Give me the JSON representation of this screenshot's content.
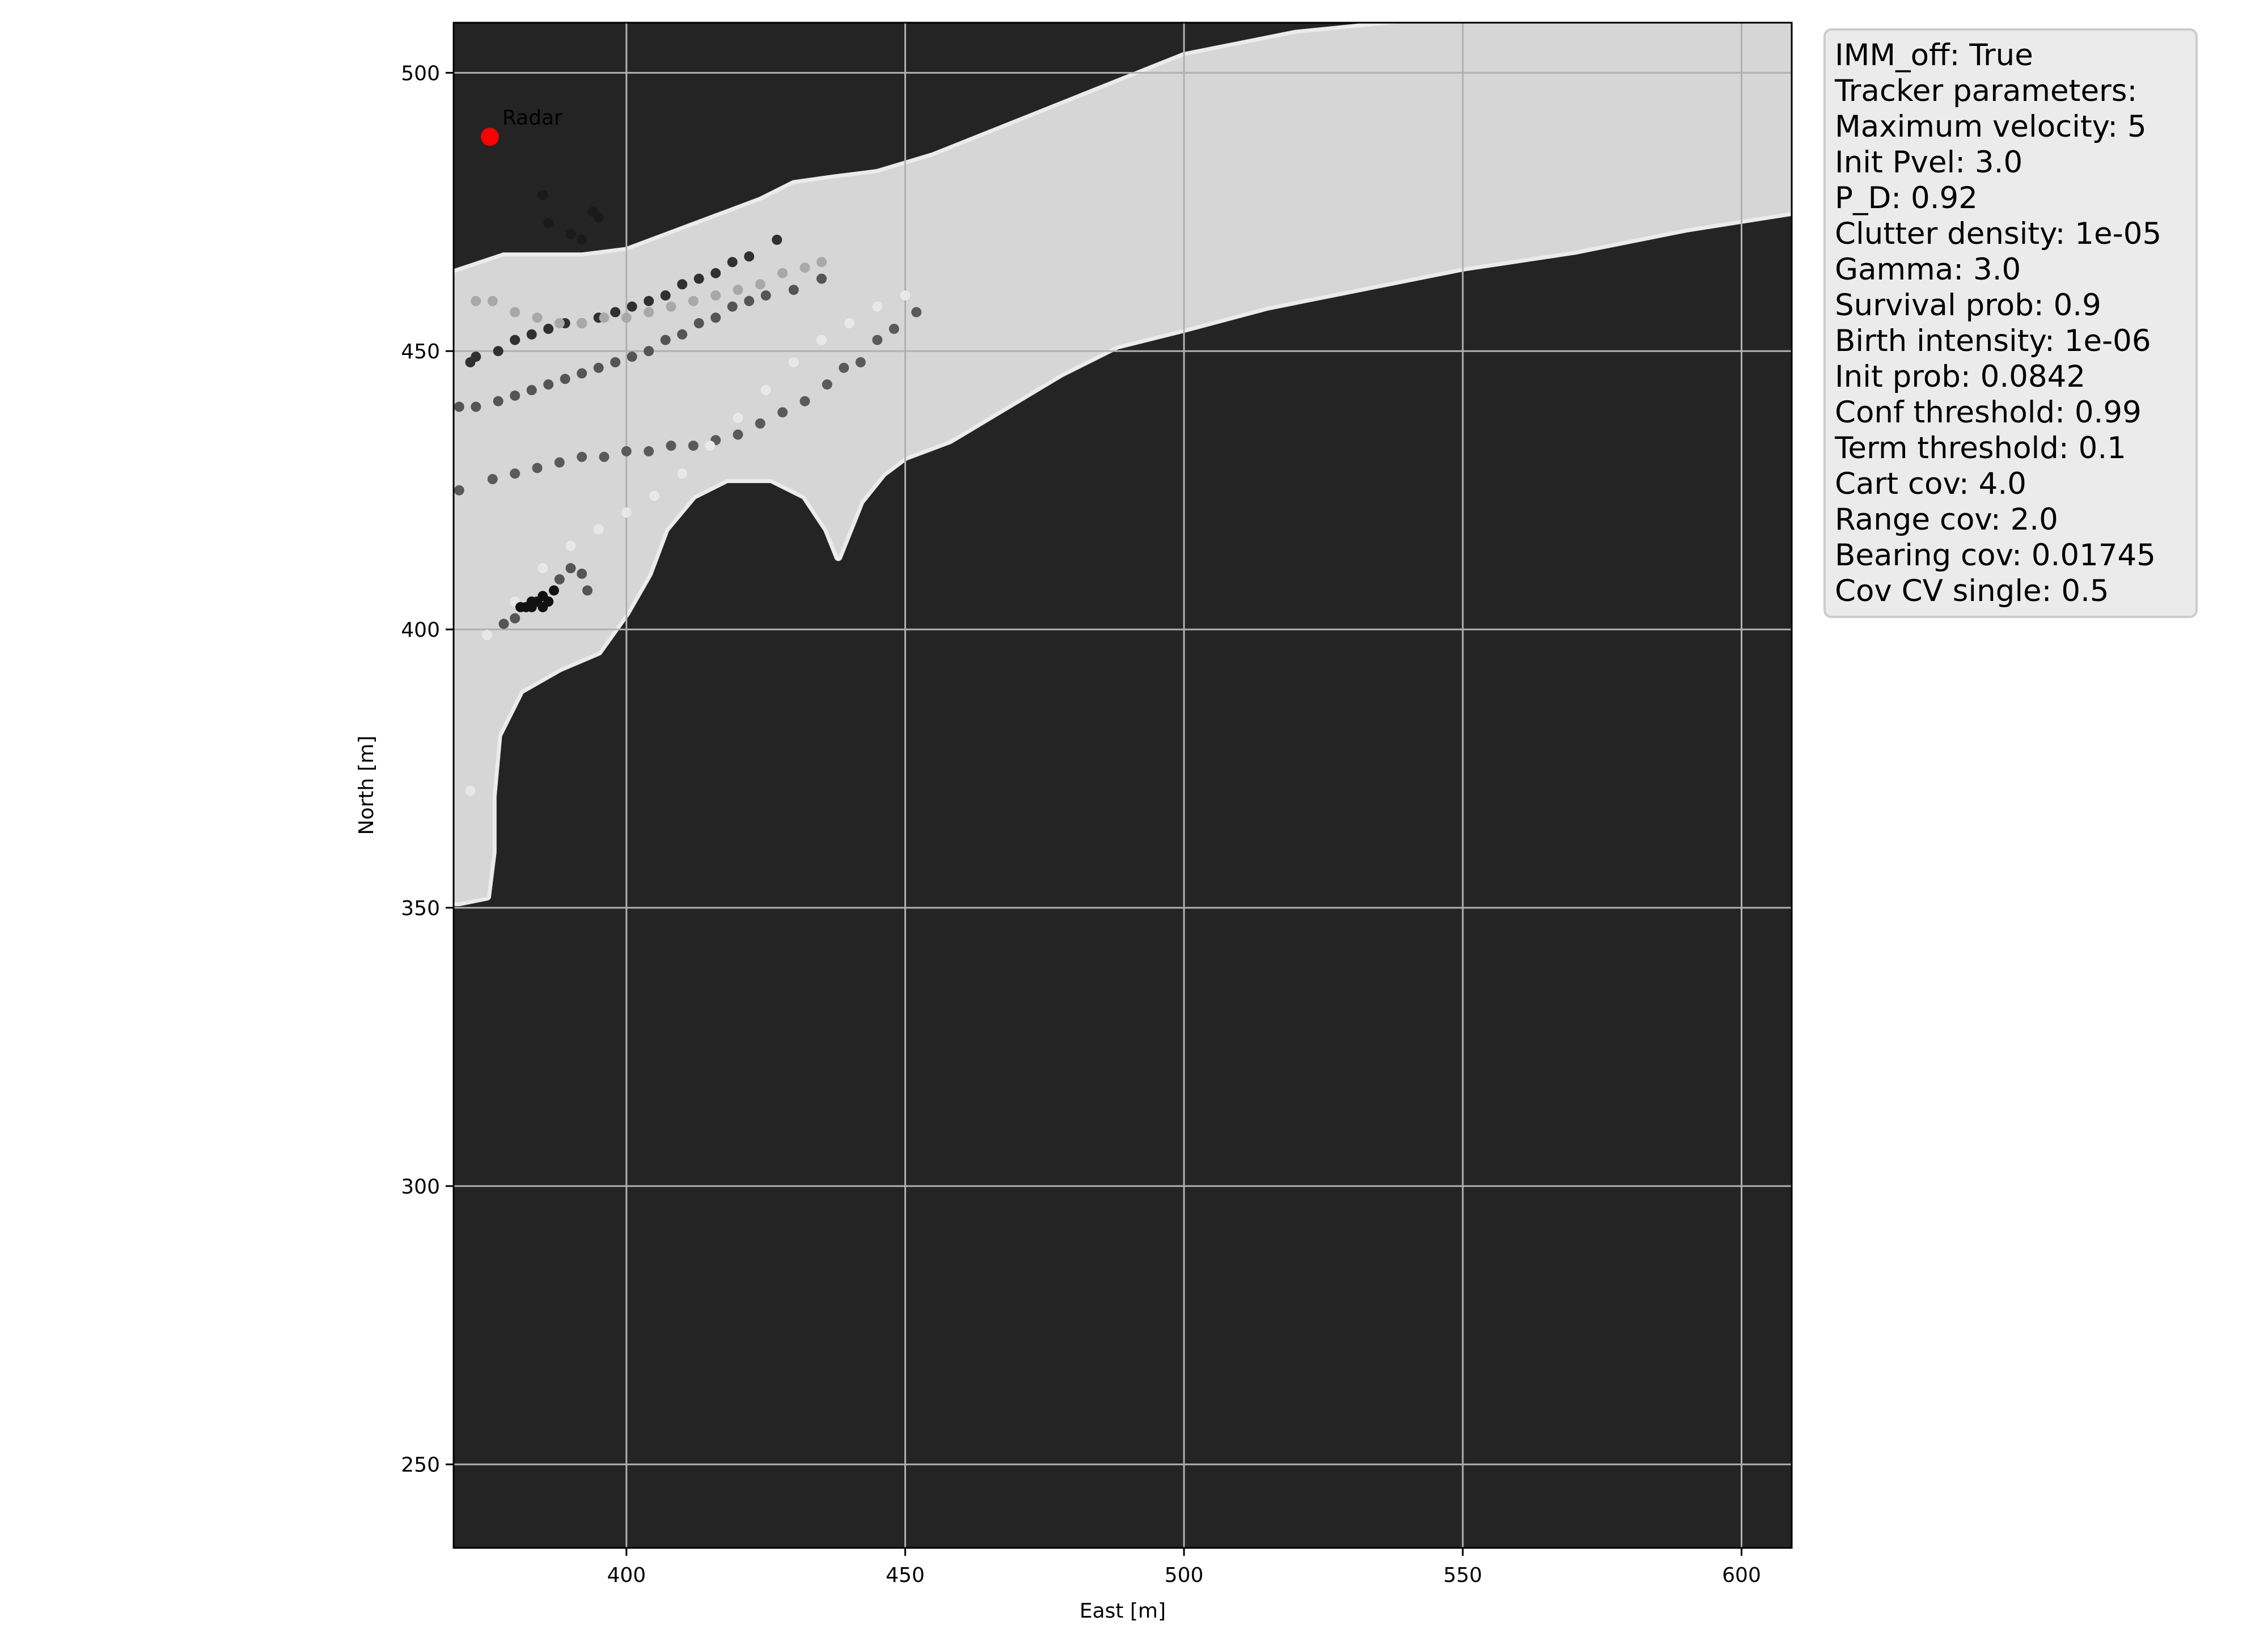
{
  "chart_data": {
    "type": "scatter",
    "title": "",
    "xlabel": "East [m]",
    "ylabel": "North [m]",
    "xlim": [
      369,
      609
    ],
    "ylim": [
      235,
      509
    ],
    "xticks": [
      400,
      450,
      500,
      550,
      600
    ],
    "yticks": [
      250,
      300,
      350,
      400,
      450,
      500
    ],
    "grid": true,
    "background": {
      "land_color": "#242424",
      "water_color": "#d6d6d6",
      "shore_color": "#ebebeb",
      "water_region": [
        [
          369,
          464
        ],
        [
          378,
          467
        ],
        [
          392,
          467
        ],
        [
          400,
          468
        ],
        [
          408,
          471
        ],
        [
          416,
          474
        ],
        [
          424,
          477
        ],
        [
          430,
          480
        ],
        [
          437,
          481
        ],
        [
          445,
          482
        ],
        [
          455,
          485
        ],
        [
          470,
          491
        ],
        [
          485,
          497
        ],
        [
          500,
          503
        ],
        [
          520,
          507
        ],
        [
          540,
          509
        ],
        [
          609,
          509
        ],
        [
          609,
          475
        ],
        [
          590,
          472
        ],
        [
          570,
          468
        ],
        [
          550,
          465
        ],
        [
          530,
          461
        ],
        [
          515,
          458
        ],
        [
          500,
          454
        ],
        [
          488,
          451
        ],
        [
          478,
          446
        ],
        [
          468,
          440
        ],
        [
          458,
          434
        ],
        [
          450,
          431
        ],
        [
          446,
          428
        ],
        [
          442,
          423
        ],
        [
          440,
          418
        ],
        [
          438,
          413
        ],
        [
          436,
          418
        ],
        [
          432,
          424
        ],
        [
          426,
          427
        ],
        [
          418,
          427
        ],
        [
          412,
          424
        ],
        [
          407,
          418
        ],
        [
          404,
          410
        ],
        [
          400,
          403
        ],
        [
          395,
          396
        ],
        [
          388,
          393
        ],
        [
          381,
          389
        ],
        [
          377,
          381
        ],
        [
          376,
          370
        ],
        [
          376,
          360
        ],
        [
          375,
          352
        ],
        [
          370,
          351
        ],
        [
          369,
          351
        ]
      ]
    },
    "radar": {
      "x": 375.5,
      "y": 488.5,
      "label": "Radar",
      "color": "#ff0000"
    },
    "series": [
      {
        "color": "#303030",
        "points": [
          [
            372,
            448
          ],
          [
            373,
            449
          ],
          [
            377,
            450
          ],
          [
            380,
            452
          ],
          [
            383,
            453
          ],
          [
            386,
            454
          ],
          [
            389,
            455
          ],
          [
            392,
            455
          ],
          [
            395,
            456
          ],
          [
            398,
            457
          ],
          [
            401,
            458
          ],
          [
            404,
            459
          ],
          [
            407,
            460
          ],
          [
            410,
            462
          ],
          [
            413,
            463
          ],
          [
            416,
            464
          ],
          [
            419,
            466
          ],
          [
            422,
            467
          ],
          [
            427,
            470
          ]
        ]
      },
      {
        "color": "#555555",
        "points": [
          [
            370,
            440
          ],
          [
            373,
            440
          ],
          [
            377,
            441
          ],
          [
            380,
            442
          ],
          [
            383,
            443
          ],
          [
            386,
            444
          ],
          [
            389,
            445
          ],
          [
            392,
            446
          ],
          [
            395,
            447
          ],
          [
            398,
            448
          ],
          [
            401,
            449
          ],
          [
            404,
            450
          ],
          [
            407,
            452
          ],
          [
            410,
            453
          ],
          [
            413,
            455
          ],
          [
            416,
            456
          ],
          [
            419,
            458
          ],
          [
            422,
            459
          ],
          [
            425,
            460
          ],
          [
            430,
            461
          ],
          [
            435,
            463
          ]
        ]
      },
      {
        "color": "#5a5a5a",
        "points": [
          [
            370,
            425
          ],
          [
            376,
            427
          ],
          [
            380,
            428
          ],
          [
            384,
            429
          ],
          [
            388,
            430
          ],
          [
            392,
            431
          ],
          [
            396,
            431
          ],
          [
            400,
            432
          ],
          [
            404,
            432
          ],
          [
            408,
            433
          ],
          [
            412,
            433
          ],
          [
            416,
            434
          ],
          [
            420,
            435
          ],
          [
            424,
            437
          ],
          [
            428,
            439
          ],
          [
            432,
            441
          ],
          [
            436,
            444
          ],
          [
            439,
            447
          ],
          [
            442,
            448
          ],
          [
            445,
            452
          ],
          [
            448,
            454
          ],
          [
            452,
            457
          ]
        ]
      },
      {
        "color": "#a8a8a8",
        "points": [
          [
            373,
            459
          ],
          [
            376,
            459
          ],
          [
            380,
            457
          ],
          [
            384,
            456
          ],
          [
            388,
            455
          ],
          [
            392,
            455
          ],
          [
            396,
            456
          ],
          [
            400,
            456
          ],
          [
            404,
            457
          ],
          [
            408,
            458
          ],
          [
            412,
            459
          ],
          [
            416,
            460
          ],
          [
            420,
            461
          ],
          [
            424,
            462
          ],
          [
            428,
            464
          ],
          [
            432,
            465
          ],
          [
            435,
            466
          ]
        ]
      },
      {
        "color": "#e8e8e8",
        "points": [
          [
            372,
            371
          ],
          [
            375,
            399
          ],
          [
            380,
            405
          ],
          [
            385,
            411
          ],
          [
            390,
            415
          ],
          [
            395,
            418
          ],
          [
            400,
            421
          ],
          [
            405,
            424
          ],
          [
            410,
            428
          ],
          [
            415,
            433
          ],
          [
            420,
            438
          ],
          [
            425,
            443
          ],
          [
            430,
            448
          ],
          [
            435,
            452
          ],
          [
            440,
            455
          ],
          [
            445,
            458
          ],
          [
            450,
            460
          ]
        ]
      },
      {
        "color": "#111111",
        "points": [
          [
            382,
            404
          ],
          [
            383,
            405
          ],
          [
            384,
            405
          ],
          [
            385,
            406
          ],
          [
            386,
            405
          ],
          [
            383,
            404
          ],
          [
            381,
            404
          ],
          [
            387,
            407
          ],
          [
            385,
            404
          ]
        ]
      },
      {
        "color": "#555555",
        "points": [
          [
            378,
            401
          ],
          [
            380,
            402
          ],
          [
            388,
            409
          ],
          [
            390,
            411
          ],
          [
            392,
            410
          ],
          [
            393,
            407
          ]
        ]
      },
      {
        "color": "#1a1a1a",
        "points": [
          [
            385,
            478
          ],
          [
            386,
            473
          ],
          [
            390,
            471
          ],
          [
            392,
            470
          ],
          [
            395,
            474
          ],
          [
            394,
            475
          ]
        ]
      }
    ]
  },
  "info_box": {
    "lines": [
      "IMM_off: True",
      "Tracker parameters:",
      "Maximum velocity: 5",
      "Init Pvel: 3.0",
      "P_D: 0.92",
      "Clutter density: 1e-05",
      "Gamma: 3.0",
      "Survival prob: 0.9",
      "Birth intensity: 1e-06",
      "Init prob: 0.0842",
      "Conf threshold: 0.99",
      "Term threshold: 0.1",
      "Cart cov: 4.0",
      "Range cov: 2.0",
      "Bearing cov: 0.01745",
      "Cov CV single: 0.5"
    ]
  }
}
